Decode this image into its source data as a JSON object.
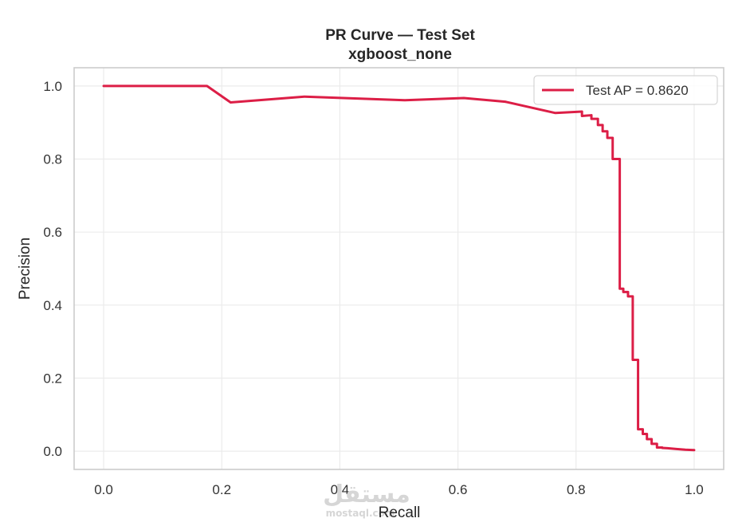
{
  "chart_data": {
    "type": "line",
    "title": "PR Curve — Test Set",
    "subtitle": "xgboost_none",
    "xlabel": "Recall",
    "ylabel": "Precision",
    "xlim": [
      -0.05,
      1.05
    ],
    "ylim": [
      -0.05,
      1.05
    ],
    "xticks": [
      "0.0",
      "0.2",
      "0.4",
      "0.6",
      "0.8",
      "1.0"
    ],
    "yticks": [
      "0.0",
      "0.2",
      "0.4",
      "0.6",
      "0.8",
      "1.0"
    ],
    "grid": true,
    "legend_position": "top-right",
    "series": [
      {
        "name": "Test AP = 0.8620",
        "color": "#dc1e46",
        "x": [
          0.0,
          0.175,
          0.215,
          0.34,
          0.51,
          0.61,
          0.68,
          0.765,
          0.81,
          0.81,
          0.826,
          0.826,
          0.837,
          0.837,
          0.845,
          0.845,
          0.853,
          0.853,
          0.862,
          0.862,
          0.874,
          0.874,
          0.88,
          0.88,
          0.888,
          0.888,
          0.896,
          0.896,
          0.905,
          0.905,
          0.913,
          0.913,
          0.92,
          0.92,
          0.928,
          0.928,
          0.937,
          0.937,
          0.946,
          0.946,
          0.955,
          0.97,
          0.985,
          1.0
        ],
        "y": [
          1.0,
          1.0,
          0.955,
          0.971,
          0.961,
          0.967,
          0.957,
          0.926,
          0.93,
          0.918,
          0.92,
          0.91,
          0.91,
          0.893,
          0.893,
          0.876,
          0.876,
          0.858,
          0.858,
          0.8,
          0.8,
          0.445,
          0.445,
          0.436,
          0.436,
          0.424,
          0.424,
          0.25,
          0.25,
          0.06,
          0.06,
          0.047,
          0.047,
          0.033,
          0.033,
          0.02,
          0.02,
          0.01,
          0.01,
          0.009,
          0.008,
          0.006,
          0.004,
          0.003
        ]
      }
    ]
  },
  "watermark": {
    "text": "مستقل",
    "subtext": "mostaql.com"
  }
}
